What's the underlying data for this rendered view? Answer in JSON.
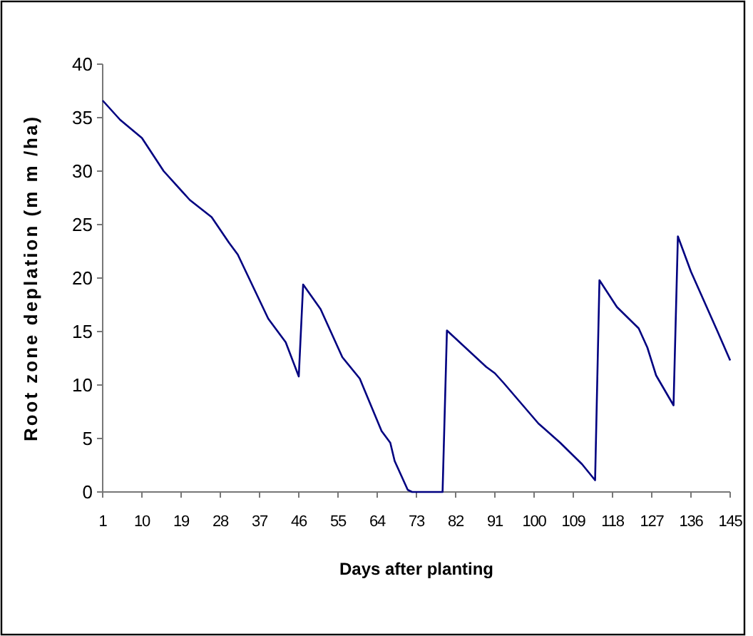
{
  "chart_data": {
    "type": "line",
    "xlabel": "Days after planting",
    "ylabel": "Root zone deplation (m m /ha)",
    "xlim": [
      1,
      145
    ],
    "xticks": [
      1,
      10,
      19,
      28,
      37,
      46,
      55,
      64,
      73,
      82,
      91,
      100,
      109,
      118,
      127,
      136,
      145
    ],
    "ylim": [
      0,
      40
    ],
    "yticks": [
      0,
      5,
      10,
      15,
      20,
      25,
      30,
      35,
      40
    ],
    "grid": false,
    "marker": "none",
    "line_style": "solid",
    "series": [
      {
        "color": "#000080",
        "x": [
          1,
          5,
          10,
          15,
          21,
          26,
          30,
          32,
          39,
          43,
          46,
          47,
          51,
          56,
          60,
          65,
          67,
          68,
          71,
          72,
          79,
          80,
          89,
          91,
          93,
          101,
          106,
          111,
          114,
          115,
          119,
          124,
          126,
          128,
          130,
          132,
          133,
          136,
          142,
          145
        ],
        "values": [
          36.6,
          34.8,
          33.1,
          30,
          27.3,
          25.7,
          23.3,
          22.2,
          16.2,
          14,
          10.8,
          19.4,
          17.1,
          12.6,
          10.6,
          5.7,
          4.6,
          2.9,
          0.2,
          0,
          0,
          15.1,
          11.7,
          11.1,
          10.2,
          6.4,
          4.6,
          2.6,
          1.1,
          19.8,
          17.3,
          15.3,
          13.5,
          10.9,
          9.5,
          8.1,
          23.9,
          20.6,
          15.1,
          12.3
        ]
      }
    ]
  }
}
